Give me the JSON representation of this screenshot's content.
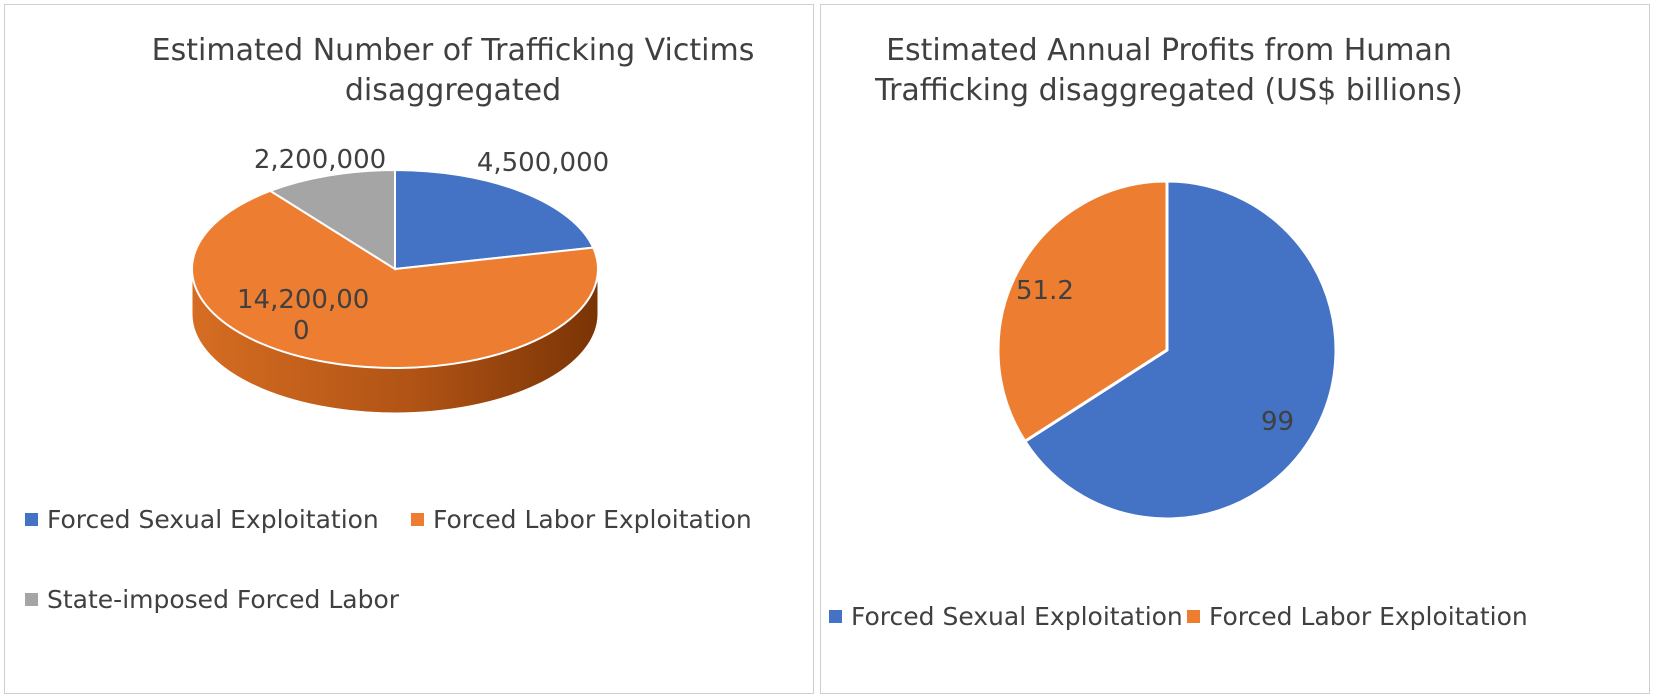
{
  "chart_data": [
    {
      "type": "pie",
      "style": "3d",
      "title_lines": [
        "Estimated Number of Trafficking Victims",
        "disaggregated"
      ],
      "slices": [
        {
          "name": "Forced Sexual Exploitation",
          "value": 4500000,
          "label": "4,500,000",
          "color": "#4472C4"
        },
        {
          "name": "Forced Labor Exploitation",
          "value": 14200000,
          "label_lines": [
            "14,200,00",
            "0"
          ],
          "color": "#ED7D31"
        },
        {
          "name": "State-imposed Forced Labor",
          "value": 2200000,
          "label": "2,200,000",
          "color": "#A5A5A5"
        }
      ],
      "legend": [
        "Forced Sexual Exploitation",
        "Forced Labor Exploitation",
        "State-imposed Forced Labor"
      ],
      "legend_position": "bottom"
    },
    {
      "type": "pie",
      "title_lines": [
        "Estimated Annual Profits from Human",
        "Trafficking disaggregated (US$ billions)"
      ],
      "slices": [
        {
          "name": "Forced Sexual Exploitation",
          "value": 99,
          "label": "99",
          "color": "#4472C4"
        },
        {
          "name": "Forced Labor Exploitation",
          "value": 51.2,
          "label": "51.2",
          "color": "#ED7D31"
        }
      ],
      "legend": [
        "Forced Sexual Exploitation",
        "Forced Labor Exploitation"
      ],
      "legend_position": "bottom"
    }
  ]
}
